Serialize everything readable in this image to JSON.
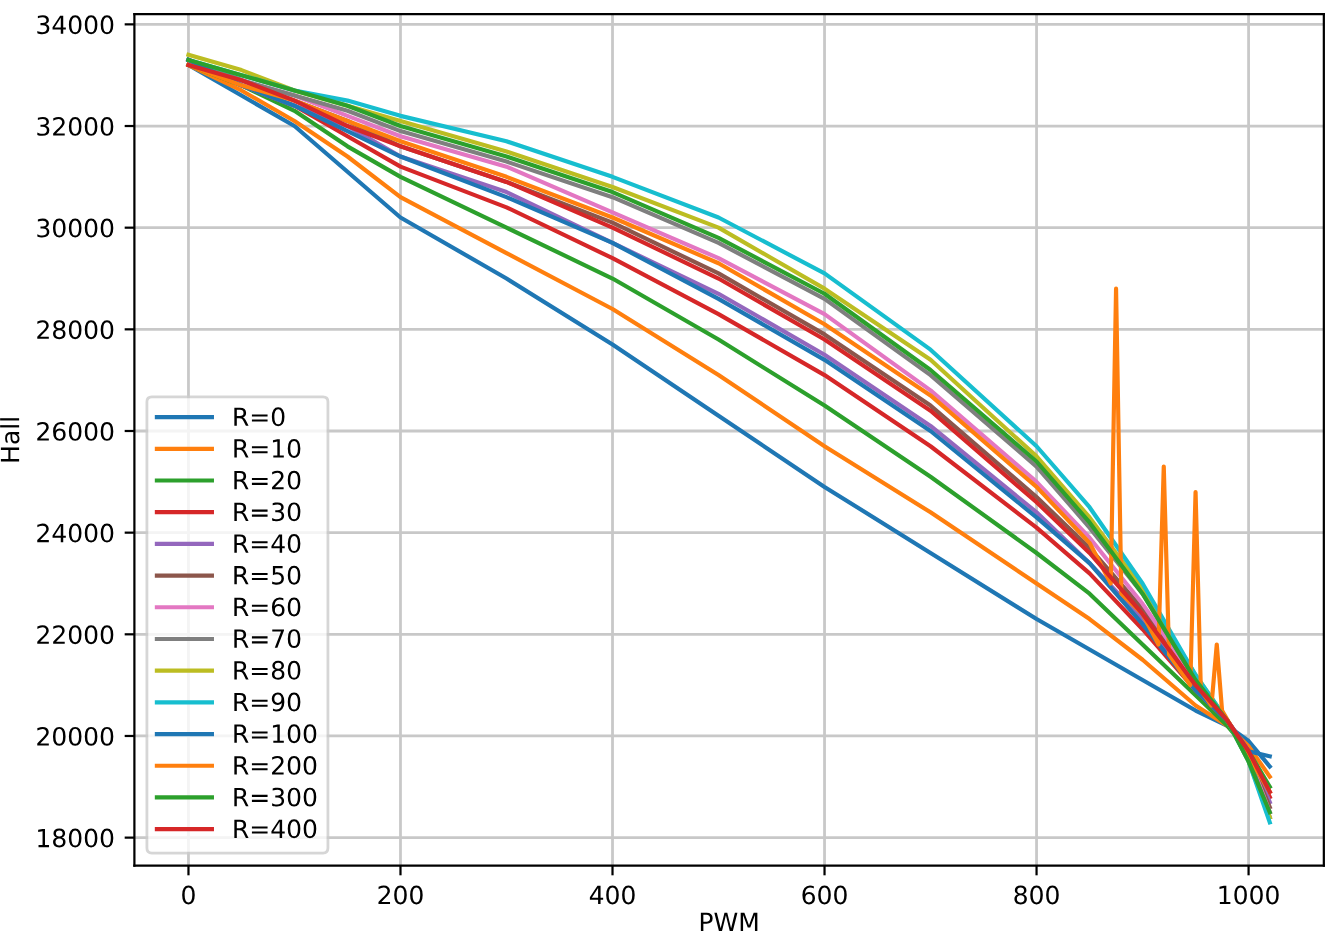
{
  "chart_data": {
    "type": "line",
    "xlabel": "PWM",
    "ylabel": "Hall",
    "x": [
      0,
      50,
      100,
      150,
      200,
      300,
      400,
      500,
      600,
      700,
      800,
      850,
      900,
      950,
      980,
      1000,
      1020
    ],
    "xlim": [
      -51,
      1071
    ],
    "ylim": [
      17450,
      34200
    ],
    "xticks": [
      0,
      200,
      400,
      600,
      800,
      1000
    ],
    "yticks": [
      18000,
      20000,
      22000,
      24000,
      26000,
      28000,
      30000,
      32000,
      34000
    ],
    "grid": true,
    "legend": "bottom left",
    "line_style": "solid",
    "marker": "none",
    "series": [
      {
        "name": "R=0",
        "color": "#1f77b4",
        "values": [
          33200,
          32600,
          32000,
          31100,
          30200,
          29000,
          27700,
          26300,
          24900,
          23600,
          22300,
          21700,
          21100,
          20500,
          20200,
          19900,
          19400
        ]
      },
      {
        "name": "R=10",
        "color": "#ff7f0e",
        "values": [
          33200,
          32700,
          32100,
          31400,
          30600,
          29500,
          28400,
          27100,
          25700,
          24400,
          23000,
          22300,
          21500,
          20600,
          20200,
          19800,
          19200
        ]
      },
      {
        "name": "R=20",
        "color": "#2ca02c",
        "values": [
          33200,
          32800,
          32300,
          31600,
          31000,
          30000,
          29000,
          27800,
          26500,
          25100,
          23600,
          22800,
          21800,
          20800,
          20200,
          19700,
          19000
        ]
      },
      {
        "name": "R=30",
        "color": "#d62728",
        "values": [
          33300,
          32800,
          32400,
          31800,
          31200,
          30400,
          29400,
          28300,
          27100,
          25700,
          24100,
          23200,
          22100,
          20900,
          20300,
          19700,
          18800
        ]
      },
      {
        "name": "R=40",
        "color": "#9467bd",
        "values": [
          33300,
          32800,
          32400,
          32000,
          31400,
          30700,
          29700,
          28700,
          27500,
          26100,
          24400,
          23400,
          22300,
          20900,
          20300,
          19700,
          18700
        ]
      },
      {
        "name": "R=50",
        "color": "#8c564b",
        "values": [
          33300,
          32900,
          32500,
          32100,
          31600,
          30900,
          30100,
          29100,
          27900,
          26500,
          24700,
          23700,
          22500,
          21000,
          20300,
          19600,
          18600
        ]
      },
      {
        "name": "R=60",
        "color": "#e377c2",
        "values": [
          33300,
          32900,
          32600,
          32200,
          31800,
          31200,
          30300,
          29400,
          28300,
          26800,
          25000,
          23900,
          22600,
          21100,
          20300,
          19600,
          18500
        ]
      },
      {
        "name": "R=70",
        "color": "#7f7f7f",
        "values": [
          33300,
          32900,
          32600,
          32300,
          31900,
          31300,
          30600,
          29700,
          28600,
          27100,
          25300,
          24100,
          22800,
          21100,
          20300,
          19600,
          18400
        ]
      },
      {
        "name": "R=80",
        "color": "#bcbd22",
        "values": [
          33400,
          33100,
          32700,
          32400,
          32100,
          31500,
          30800,
          30000,
          28800,
          27400,
          25500,
          24300,
          22900,
          21200,
          20300,
          19500,
          18400
        ]
      },
      {
        "name": "R=90",
        "color": "#17becf",
        "values": [
          33300,
          33000,
          32700,
          32500,
          32200,
          31700,
          31000,
          30200,
          29100,
          27600,
          25700,
          24500,
          23000,
          21200,
          20300,
          19500,
          18300
        ]
      },
      {
        "name": "R=100",
        "color": "#1f77b4",
        "values": [
          33300,
          32800,
          32400,
          31900,
          31400,
          30600,
          29700,
          28600,
          27400,
          26000,
          24300,
          23400,
          22200,
          20900,
          20300,
          19700,
          19600
        ]
      },
      {
        "name": "R=200",
        "color": "#ff7f0e",
        "x": [
          0,
          50,
          100,
          150,
          200,
          300,
          400,
          500,
          600,
          700,
          800,
          850,
          870,
          875,
          880,
          900,
          915,
          920,
          925,
          945,
          950,
          955,
          965,
          970,
          975,
          1000,
          1020
        ],
        "values": [
          33200,
          32800,
          32500,
          32100,
          31700,
          31000,
          30200,
          29300,
          28100,
          26700,
          24900,
          23800,
          23000,
          28800,
          22800,
          22400,
          21800,
          25300,
          21600,
          21000,
          24800,
          20900,
          20600,
          21800,
          20500,
          19600,
          18900
        ]
      },
      {
        "name": "R=300",
        "color": "#2ca02c",
        "values": [
          33300,
          33000,
          32700,
          32400,
          32000,
          31400,
          30700,
          29800,
          28700,
          27200,
          25400,
          24200,
          22800,
          21100,
          20300,
          19500,
          18500
        ]
      },
      {
        "name": "R=400",
        "color": "#d62728",
        "values": [
          33200,
          32900,
          32500,
          32000,
          31600,
          30900,
          30000,
          29000,
          27800,
          26400,
          24600,
          23600,
          22400,
          21000,
          20300,
          19700,
          18900
        ]
      }
    ]
  }
}
